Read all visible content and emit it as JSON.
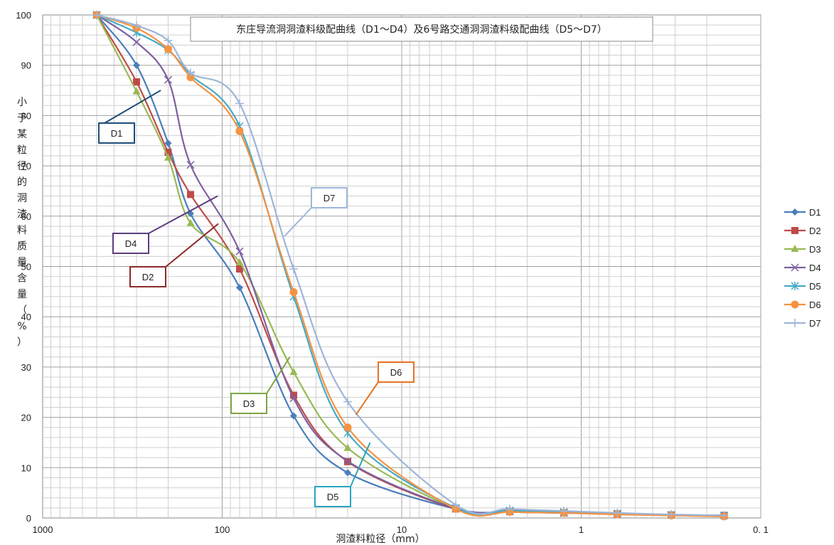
{
  "chart_data": {
    "type": "line",
    "title": "东庄导流洞洞渣料级配曲线（D1～D4）及6号路交通洞洞渣料级配曲线（D5～D7）",
    "xlabel": "洞渣料粒径（mm）",
    "ylabel": "小于某粒径的洞渣料质量含量（%）",
    "x_scale": "log",
    "x_reversed": true,
    "xlim": [
      1000,
      0.1
    ],
    "ylim": [
      0,
      100
    ],
    "x_tick_labels": [
      "1000",
      "100",
      "10",
      "1",
      "0. 1"
    ],
    "y_ticks": [
      0,
      10,
      20,
      30,
      40,
      50,
      60,
      70,
      80,
      90,
      100
    ],
    "grid": true,
    "legend_position": "right",
    "series": [
      {
        "name": "D1",
        "color": "#4a7ebb",
        "marker": "diamond",
        "x": [
          500,
          300,
          200,
          150,
          80,
          40,
          20,
          5,
          2.5,
          1.25,
          0.63,
          0.315,
          0.16
        ],
        "y": [
          100,
          90,
          74.5,
          60.5,
          45.8,
          20.3,
          9,
          1.8,
          1.2,
          1,
          0.8,
          0.6,
          0.5
        ]
      },
      {
        "name": "D2",
        "color": "#be4b48",
        "marker": "square",
        "x": [
          500,
          300,
          200,
          150,
          80,
          40,
          20,
          5,
          2.5,
          1.25,
          0.63,
          0.315,
          0.16
        ],
        "y": [
          100,
          86.7,
          72.7,
          64.3,
          49.5,
          24.4,
          11.2,
          1.8,
          1.3,
          1,
          0.8,
          0.6,
          0.5
        ]
      },
      {
        "name": "D3",
        "color": "#98b954",
        "marker": "triangle",
        "x": [
          500,
          300,
          200,
          150,
          80,
          40,
          20,
          5,
          2.5,
          1.25,
          0.63,
          0.315,
          0.16
        ],
        "y": [
          100,
          84.8,
          71.6,
          58.6,
          50.8,
          29,
          13.9,
          1.9,
          1.4,
          1.1,
          0.9,
          0.6,
          0.5
        ]
      },
      {
        "name": "D4",
        "color": "#7d60a0",
        "marker": "x",
        "x": [
          500,
          300,
          200,
          150,
          80,
          40,
          20,
          5,
          2.5,
          1.25,
          0.63,
          0.315,
          0.16
        ],
        "y": [
          100,
          94.6,
          87.1,
          70.2,
          53,
          23.8,
          11.3,
          1.9,
          1.3,
          1,
          0.8,
          0.6,
          0.5
        ]
      },
      {
        "name": "D5",
        "color": "#46aac5",
        "marker": "star",
        "x": [
          500,
          300,
          200,
          150,
          80,
          40,
          20,
          5,
          2.5,
          1.25,
          0.63,
          0.315,
          0.16
        ],
        "y": [
          100,
          96.5,
          93,
          88.1,
          77.9,
          44,
          16.9,
          2,
          1.5,
          1.2,
          0.9,
          0.6,
          0.5
        ]
      },
      {
        "name": "D6",
        "color": "#f69240",
        "marker": "circle",
        "x": [
          500,
          300,
          200,
          150,
          80,
          40,
          20,
          5,
          2.5,
          1.25,
          0.63,
          0.315,
          0.16
        ],
        "y": [
          100,
          97.4,
          93.2,
          87.6,
          76.9,
          44.9,
          18,
          1.8,
          1.2,
          1,
          0.7,
          0.5,
          0.3
        ]
      },
      {
        "name": "D7",
        "color": "#9eb5d8",
        "marker": "plus",
        "x": [
          500,
          300,
          200,
          150,
          80,
          40,
          20,
          5,
          2.5,
          1.25,
          0.63,
          0.315,
          0.16
        ],
        "y": [
          100,
          97.9,
          94.9,
          88.5,
          82.4,
          49.5,
          23.1,
          2.6,
          1.8,
          1.4,
          1,
          0.7,
          0.5
        ]
      }
    ],
    "annotations": [
      {
        "label": "D1",
        "color": "#1f4e79",
        "points_to": [
          220,
          85
        ]
      },
      {
        "label": "D7",
        "color": "#9eb5d8",
        "points_to": [
          45,
          56
        ]
      },
      {
        "label": "D4",
        "color": "#5b3d7e",
        "points_to": [
          106,
          64
        ]
      },
      {
        "label": "D2",
        "color": "#8b2c2a",
        "points_to": [
          105,
          58.5
        ]
      },
      {
        "label": "D3",
        "color": "#7ea444",
        "points_to": [
          42,
          32
        ]
      },
      {
        "label": "D6",
        "color": "#e6731e",
        "points_to": [
          18,
          20.5
        ]
      },
      {
        "label": "D5",
        "color": "#2aa3bd",
        "points_to": [
          15,
          15
        ]
      }
    ]
  }
}
